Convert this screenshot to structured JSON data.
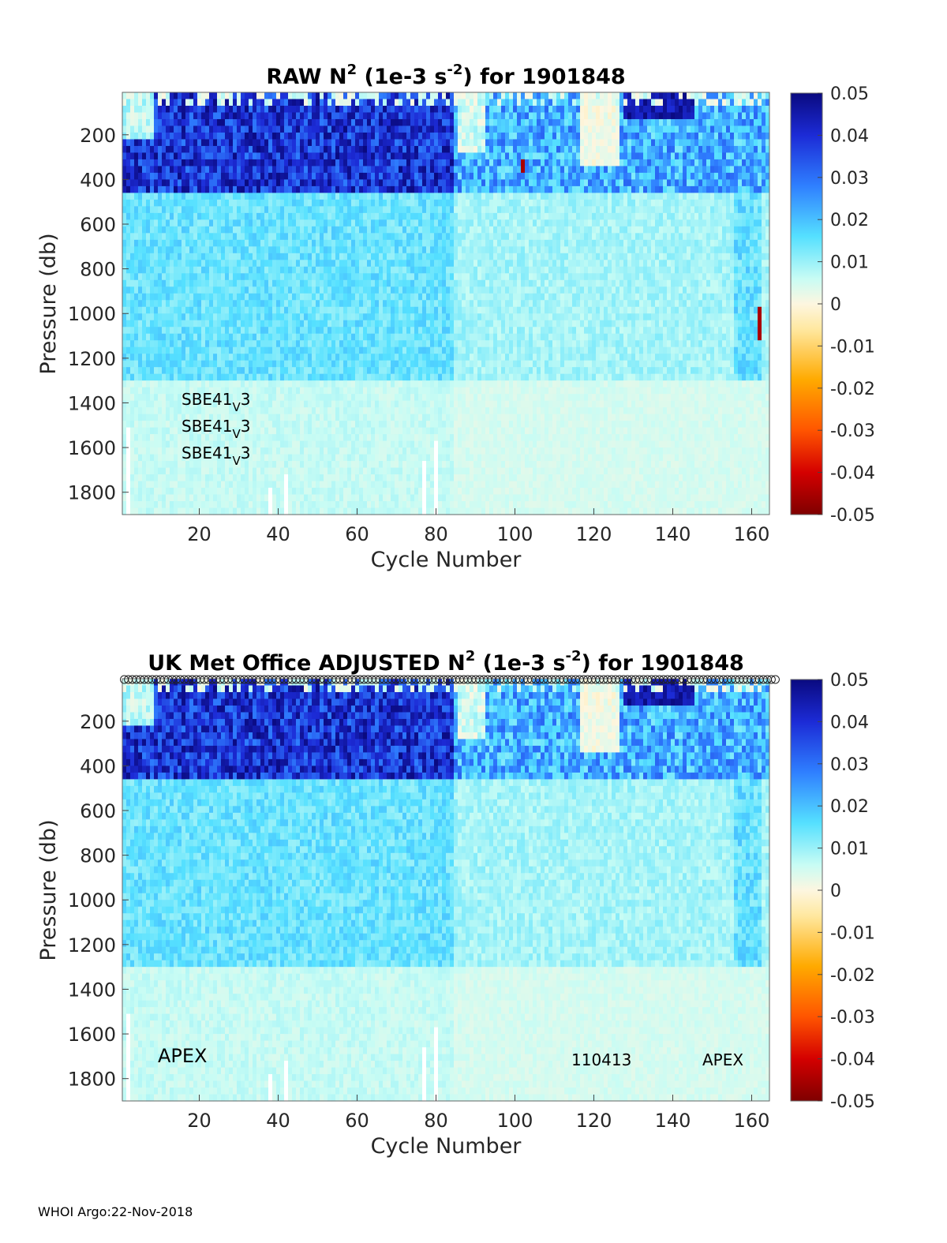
{
  "chart_data": [
    {
      "type": "heatmap",
      "title_prefix": "RAW N",
      "title_sup1": "2",
      "title_mid": " (1e-3 s",
      "title_sup2": "-2",
      "title_suffix": ") for 1901848",
      "xlabel": "Cycle Number",
      "ylabel": "Pressure (db)",
      "xlim": [
        1,
        164
      ],
      "ylim": [
        1900,
        10
      ],
      "xticks": [
        "20",
        "40",
        "60",
        "80",
        "100",
        "120",
        "140",
        "160"
      ],
      "yticks": [
        "200",
        "400",
        "600",
        "800",
        "1000",
        "1200",
        "1400",
        "1600",
        "1800"
      ],
      "clim": [
        -0.05,
        0.05
      ],
      "colorbar_ticks": [
        "0.05",
        "0.04",
        "0.03",
        "0.02",
        "0.01",
        "0",
        "-0.01",
        "-0.02",
        "-0.03",
        "-0.04",
        "-0.05"
      ],
      "annotations": [
        {
          "base": "SBE41",
          "sub": "V",
          "tail": "3"
        },
        {
          "base": "SBE41",
          "sub": "V",
          "tail": "3"
        },
        {
          "base": "SBE41",
          "sub": "V",
          "tail": "3"
        }
      ],
      "field_description": {
        "surface_layer_0_450db_cycles_1_84": 0.045,
        "surface_layer_0_450db_cycles_85_164": 0.02,
        "mid_layer_450_1300db_cycles_1_84": 0.013,
        "mid_layer_450_1300db_cycles_85_164": 0.008,
        "deep_layer_1300_1900db": 0.006,
        "near_zero_patch_cycles_118_126_0_300db": 0.0,
        "negative_outlier_cycle_161_1000db": -0.045
      }
    },
    {
      "type": "heatmap",
      "title_prefix": "UK Met Office  ADJUSTED N",
      "title_sup1": "2",
      "title_mid": " (1e-3 s",
      "title_sup2": "-2",
      "title_suffix": ") for 1901848",
      "xlabel": "Cycle Number",
      "ylabel": "Pressure (db)",
      "xlim": [
        1,
        164
      ],
      "ylim": [
        1900,
        10
      ],
      "xticks": [
        "20",
        "40",
        "60",
        "80",
        "100",
        "120",
        "140",
        "160"
      ],
      "yticks": [
        "200",
        "400",
        "600",
        "800",
        "1000",
        "1200",
        "1400",
        "1600",
        "1800"
      ],
      "clim": [
        -0.05,
        0.05
      ],
      "colorbar_ticks": [
        "0.05",
        "0.04",
        "0.03",
        "0.02",
        "0.01",
        "0",
        "-0.01",
        "-0.02",
        "-0.03",
        "-0.04",
        "-0.05"
      ],
      "annotations": [
        "APEX",
        "110413",
        "APEX"
      ],
      "qc_markers": "circles along top edge for every cycle"
    }
  ],
  "footer": "WHOI Argo:22-Nov-2018",
  "colors": {
    "colormap": [
      "#7f0000",
      "#d40000",
      "#ff5500",
      "#ffaa00",
      "#ffe8a0",
      "#fdf6e0",
      "#c8fcf4",
      "#55e0ff",
      "#2f7fff",
      "#1c2bd6",
      "#0a0a80"
    ]
  }
}
